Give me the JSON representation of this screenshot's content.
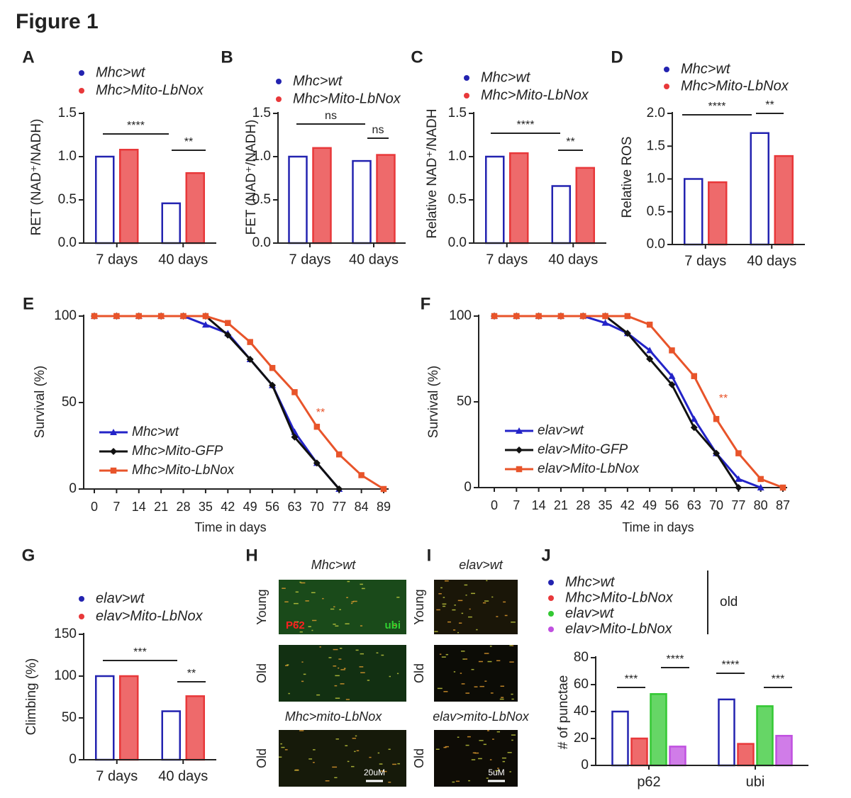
{
  "title": "Figure 1",
  "chart_data": [
    {
      "type": "bar",
      "panel": "A",
      "y_label": "RET (NAD⁺/NADH)",
      "categories": [
        "7 days",
        "40 days"
      ],
      "series": [
        {
          "name": "Mhc>wt",
          "color": "#2323b0",
          "outline": true,
          "values": [
            1.0,
            0.46
          ]
        },
        {
          "name": "Mhc>Mito-LbNox",
          "color": "#e8383a",
          "values": [
            1.08,
            0.81
          ]
        }
      ],
      "ylim": [
        0,
        1.5
      ],
      "yticks": [
        {
          "value": 0,
          "label": "0.0"
        },
        0.5,
        {
          "value": 1,
          "label": "1.0"
        },
        1.5
      ],
      "annotations": [
        "****",
        "**"
      ]
    },
    {
      "type": "bar",
      "panel": "B",
      "y_label": "FET (NAD⁺/NADH)",
      "categories": [
        "7 days",
        "40 days"
      ],
      "series": [
        {
          "name": "Mhc>wt",
          "color": "#2323b0",
          "outline": true,
          "values": [
            1.0,
            0.95
          ]
        },
        {
          "name": "Mhc>Mito-LbNox",
          "color": "#e8383a",
          "values": [
            1.1,
            1.02
          ]
        }
      ],
      "ylim": [
        0,
        1.5
      ],
      "yticks": [
        {
          "value": 0,
          "label": "0.0"
        },
        0.5,
        {
          "value": 1,
          "label": "1.0"
        },
        1.5
      ],
      "annotations": [
        "ns",
        "ns"
      ]
    },
    {
      "type": "bar",
      "panel": "C",
      "y_label": "Relative NAD⁺/NADH",
      "categories": [
        "7 days",
        "40 days"
      ],
      "series": [
        {
          "name": "Mhc>wt",
          "color": "#2323b0",
          "outline": true,
          "values": [
            1.0,
            0.66
          ]
        },
        {
          "name": "Mhc>Mito-LbNox",
          "color": "#e8383a",
          "values": [
            1.04,
            0.87
          ]
        }
      ],
      "ylim": [
        0,
        1.5
      ],
      "yticks": [
        {
          "value": 0,
          "label": "0.0"
        },
        0.5,
        {
          "value": 1,
          "label": "1.0"
        },
        1.5
      ],
      "annotations": [
        "****",
        "**"
      ]
    },
    {
      "type": "bar",
      "panel": "D",
      "y_label": "Relative ROS",
      "categories": [
        "7 days",
        "40 days"
      ],
      "series": [
        {
          "name": "Mhc>wt",
          "color": "#2323b0",
          "outline": true,
          "values": [
            1.0,
            1.7
          ]
        },
        {
          "name": "Mhc>Mito-LbNox",
          "color": "#e8383a",
          "values": [
            0.95,
            1.35
          ]
        }
      ],
      "ylim": [
        0,
        2
      ],
      "yticks": [
        {
          "value": 0,
          "label": "0.0"
        },
        0.5,
        {
          "value": 1,
          "label": "1.0"
        },
        1.5,
        {
          "value": 2,
          "label": "2.0"
        }
      ],
      "annotations": [
        "****",
        "**"
      ]
    },
    {
      "type": "line",
      "panel": "E",
      "x_label": "Time in days",
      "y_label": "Survival (%)",
      "categories": [
        "0",
        "7",
        "14",
        "21",
        "28",
        "35",
        "42",
        "49",
        "56",
        "63",
        "70",
        "77",
        "84",
        "89"
      ],
      "series": [
        {
          "name": "Mhc>wt",
          "color": "#2323c8",
          "marker": "triangle",
          "values": [
            100,
            100,
            100,
            100,
            100,
            95,
            90,
            75,
            60,
            33,
            15,
            0,
            null,
            null
          ]
        },
        {
          "name": "Mhc>Mito-GFP",
          "color": "#111111",
          "marker": "diamond",
          "values": [
            100,
            100,
            100,
            100,
            100,
            100,
            89,
            75,
            60,
            30,
            15,
            0,
            null,
            null
          ]
        },
        {
          "name": "Mhc>Mito-LbNox",
          "color": "#e8542a",
          "marker": "square",
          "values": [
            100,
            100,
            100,
            100,
            100,
            100,
            96,
            85,
            70,
            56,
            36,
            20,
            8,
            0
          ]
        }
      ],
      "ylim": [
        0,
        100
      ],
      "yticks": [
        0,
        50,
        100
      ],
      "legend": "lower left",
      "annotations": [
        "**"
      ]
    },
    {
      "type": "line",
      "panel": "F",
      "x_label": "Time in days",
      "y_label": "Survival (%)",
      "categories": [
        "0",
        "7",
        "14",
        "21",
        "28",
        "35",
        "42",
        "49",
        "56",
        "63",
        "70",
        "77",
        "80",
        "87"
      ],
      "series": [
        {
          "name": "elav>wt",
          "color": "#2323c8",
          "marker": "triangle",
          "values": [
            100,
            100,
            100,
            100,
            100,
            96,
            90,
            80,
            65,
            40,
            20,
            5,
            0,
            null
          ]
        },
        {
          "name": "elav>Mito-GFP",
          "color": "#111111",
          "marker": "diamond",
          "values": [
            100,
            100,
            100,
            100,
            100,
            100,
            90,
            75,
            60,
            35,
            20,
            0,
            null,
            null
          ]
        },
        {
          "name": "elav>Mito-LbNox",
          "color": "#e8542a",
          "marker": "square",
          "values": [
            100,
            100,
            100,
            100,
            100,
            100,
            100,
            95,
            80,
            65,
            40,
            20,
            5,
            0
          ]
        }
      ],
      "ylim": [
        0,
        100
      ],
      "yticks": [
        0,
        50,
        100
      ],
      "legend": "lower left",
      "annotations": [
        "**"
      ]
    },
    {
      "type": "bar",
      "panel": "G",
      "y_label": "Climbing (%)",
      "categories": [
        "7 days",
        "40 days"
      ],
      "series": [
        {
          "name": "elav>wt",
          "color": "#2323b0",
          "outline": true,
          "values": [
            100,
            58
          ]
        },
        {
          "name": "elav>Mito-LbNox",
          "color": "#e8383a",
          "values": [
            100,
            76
          ]
        }
      ],
      "ylim": [
        0,
        150
      ],
      "yticks": [
        0,
        50,
        100,
        150
      ],
      "annotations": [
        "***",
        "**"
      ]
    },
    {
      "type": "bar",
      "panel": "J",
      "y_label": "# of punctae",
      "categories": [
        "p62",
        "ubi"
      ],
      "series": [
        {
          "name": "Mhc>wt",
          "color": "#2323b0",
          "outline": true,
          "values": [
            40,
            49
          ]
        },
        {
          "name": "Mhc>Mito-LbNox",
          "color": "#e8383a",
          "values": [
            20,
            16
          ]
        },
        {
          "name": "elav>wt",
          "color": "#33c833",
          "values": [
            53,
            44
          ]
        },
        {
          "name": "elav>Mito-LbNox",
          "color": "#c050e0",
          "values": [
            14,
            22
          ]
        }
      ],
      "ylim": [
        0,
        80
      ],
      "yticks": [
        0,
        20,
        40,
        60,
        80
      ],
      "legend_note": "old",
      "annotations": [
        "***",
        "****",
        "****",
        "***"
      ]
    }
  ],
  "images": [
    {
      "panel": "H",
      "titles": [
        "Mhc>wt",
        "Mhc>mito-LbNox"
      ],
      "rows": [
        "Young",
        "Old",
        "Old"
      ],
      "stains": [
        "P62",
        "ubi"
      ],
      "scale_bar": "20uM"
    },
    {
      "panel": "I",
      "titles": [
        "elav>wt",
        "elav>mito-LbNox"
      ],
      "rows": [
        "Young",
        "Old",
        "Old"
      ],
      "scale_bar": "5uM"
    }
  ]
}
